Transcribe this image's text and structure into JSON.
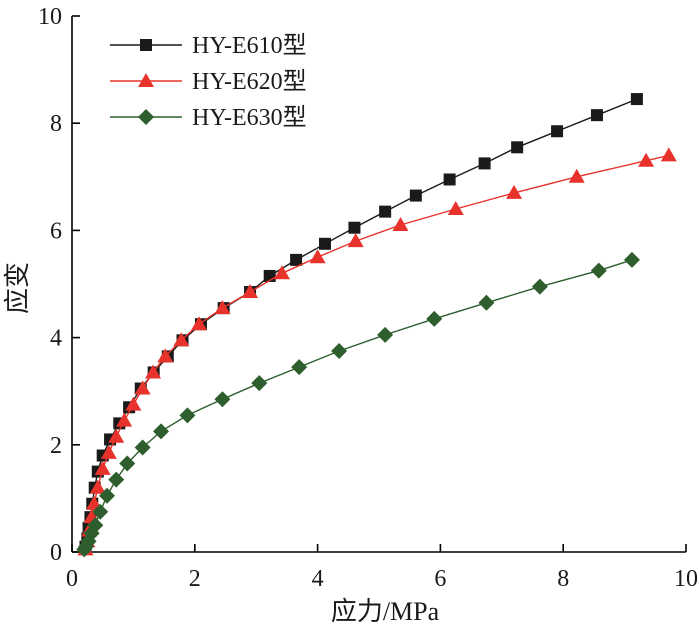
{
  "chart_data": {
    "type": "line",
    "xlabel": "应力/MPa",
    "ylabel": "应变",
    "xlim": [
      0,
      10
    ],
    "ylim": [
      0,
      10
    ],
    "xticks": [
      "0",
      "2",
      "4",
      "6",
      "8",
      "10"
    ],
    "yticks": [
      "0",
      "2",
      "4",
      "6",
      "8",
      "10"
    ],
    "grid": false,
    "legend_position": "top-left",
    "series": [
      {
        "name": "HY-E610型",
        "color": "#1a1a1a",
        "marker": "square",
        "x": [
          0.22,
          0.25,
          0.27,
          0.3,
          0.33,
          0.37,
          0.42,
          0.5,
          0.62,
          0.77,
          0.93,
          1.12,
          1.33,
          1.56,
          1.8,
          2.1,
          2.47,
          2.9,
          3.22,
          3.65,
          4.12,
          4.6,
          5.1,
          5.6,
          6.15,
          6.72,
          7.25,
          7.9,
          8.55,
          9.2
        ],
        "y": [
          0.1,
          0.25,
          0.45,
          0.65,
          0.9,
          1.2,
          1.5,
          1.8,
          2.1,
          2.4,
          2.7,
          3.05,
          3.35,
          3.65,
          3.95,
          4.25,
          4.55,
          4.85,
          5.15,
          5.45,
          5.75,
          6.05,
          6.35,
          6.65,
          6.95,
          7.25,
          7.55,
          7.85,
          8.15,
          8.45
        ]
      },
      {
        "name": "HY-E620型",
        "color": "#e8332c",
        "marker": "triangle",
        "x": [
          0.22,
          0.25,
          0.28,
          0.32,
          0.36,
          0.42,
          0.5,
          0.6,
          0.72,
          0.85,
          1.0,
          1.15,
          1.32,
          1.52,
          1.78,
          2.07,
          2.45,
          2.9,
          3.42,
          4.0,
          4.62,
          5.35,
          6.25,
          7.2,
          8.22,
          9.35,
          9.72
        ],
        "y": [
          0.05,
          0.2,
          0.4,
          0.65,
          0.9,
          1.2,
          1.55,
          1.85,
          2.15,
          2.45,
          2.75,
          3.05,
          3.35,
          3.65,
          3.95,
          4.25,
          4.55,
          4.85,
          5.2,
          5.5,
          5.8,
          6.1,
          6.4,
          6.7,
          7.0,
          7.3,
          7.4
        ]
      },
      {
        "name": "HY-E630型",
        "color": "#2e5e2e",
        "marker": "diamond",
        "x": [
          0.2,
          0.23,
          0.27,
          0.32,
          0.38,
          0.46,
          0.57,
          0.72,
          0.9,
          1.15,
          1.45,
          1.88,
          2.45,
          3.05,
          3.7,
          4.35,
          5.1,
          5.9,
          6.75,
          7.62,
          8.58,
          9.12
        ],
        "y": [
          0.05,
          0.1,
          0.2,
          0.35,
          0.5,
          0.75,
          1.05,
          1.35,
          1.65,
          1.95,
          2.25,
          2.55,
          2.85,
          3.15,
          3.45,
          3.75,
          4.05,
          4.35,
          4.65,
          4.95,
          5.25,
          5.45
        ]
      }
    ]
  }
}
